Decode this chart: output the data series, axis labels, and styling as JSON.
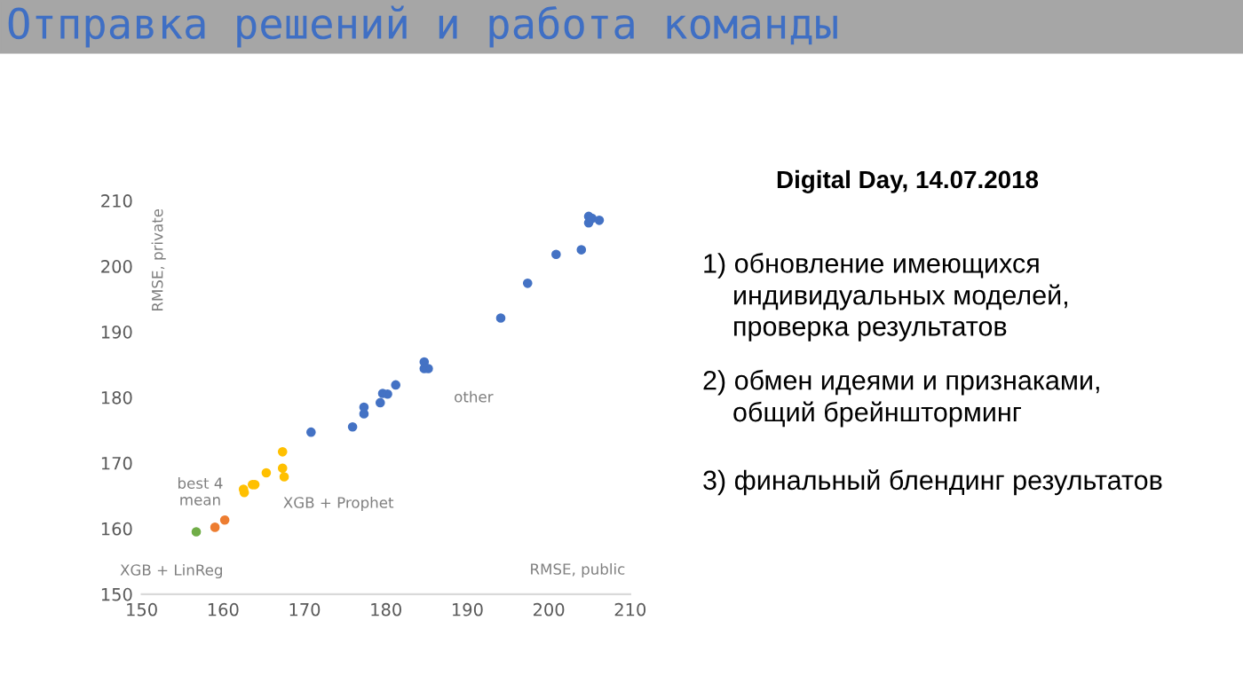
{
  "chart_data": {
    "type": "scatter",
    "title": "Отправка решений и работа команды",
    "subtitle": "Digital Day, 14.07.2018",
    "xlabel": "RMSE, public",
    "ylabel": "RMSE, private",
    "xlim": [
      150,
      210
    ],
    "xticks": [
      150,
      160,
      170,
      180,
      190,
      200,
      210
    ],
    "ylim": [
      150,
      210
    ],
    "yticks": [
      150,
      160,
      170,
      180,
      190,
      200,
      210
    ],
    "grid": false,
    "marker": "circle",
    "series": [
      {
        "name": "other",
        "color": "#4472c4",
        "x": [
          170.8,
          175.9,
          177.3,
          177.3,
          179.3,
          179.6,
          180.2,
          181.2,
          184.7,
          184.7,
          185.2,
          194.1,
          197.4,
          200.9,
          204.0,
          204.9,
          204.9,
          205.3,
          206.2
        ],
        "values": [
          174.7,
          175.5,
          177.5,
          178.5,
          179.2,
          180.6,
          180.5,
          181.9,
          185.4,
          184.4,
          184.4,
          192.1,
          197.4,
          201.8,
          202.5,
          207.6,
          206.6,
          207.3,
          207.0
        ]
      },
      {
        "name": "XGB + Prophet",
        "color": "#ffc000",
        "x": [
          167.3,
          167.3,
          167.5,
          165.3,
          163.6,
          163.9,
          162.5,
          162.6
        ],
        "values": [
          171.7,
          169.2,
          167.9,
          168.5,
          166.7,
          166.7,
          166.0,
          165.5
        ]
      },
      {
        "name": "best 4\nmean",
        "color": "#ed7d31",
        "x": [
          159.0,
          160.2
        ],
        "values": [
          160.2,
          161.3
        ]
      },
      {
        "name": "XGB + LinReg",
        "color": "#70ad47",
        "x": [
          156.7
        ],
        "values": [
          159.5
        ]
      }
    ],
    "annotations": [
      "1) обновление имеющихся\n    индивидуальных моделей,\n    проверка результатов",
      "2) обмен идеями и признаками,\n    общий брейншторминг",
      "3) финальный блендинг результатов"
    ]
  }
}
